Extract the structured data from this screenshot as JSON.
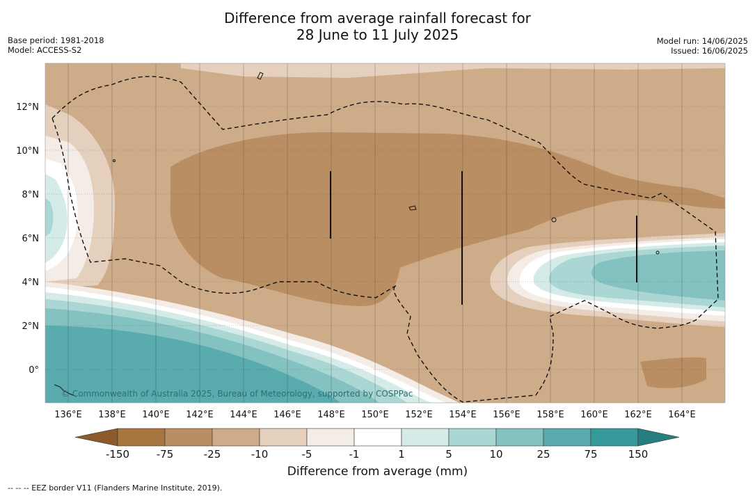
{
  "header": {
    "title_line1": "Difference from average rainfall forecast for",
    "title_line2": "28 June to 11 July 2025",
    "base_period": "Base period: 1981-2018",
    "model": "Model: ACCESS-S2",
    "model_run": "Model run: 14/06/2025",
    "issued": "Issued: 16/06/2025"
  },
  "map": {
    "lon_ticks": [
      "136°E",
      "138°E",
      "140°E",
      "142°E",
      "144°E",
      "146°E",
      "148°E",
      "150°E",
      "152°E",
      "154°E",
      "156°E",
      "158°E",
      "160°E",
      "162°E",
      "164°E"
    ],
    "lat_ticks": [
      "12°N",
      "10°N",
      "8°N",
      "6°N",
      "4°N",
      "2°N",
      "0°"
    ],
    "copyright": "© Commonwealth of Australia 2025, Bureau of Meteorology, supported by COSPPac"
  },
  "legend": {
    "title": "Difference from average (mm)",
    "tick_labels": [
      "-150",
      "-75",
      "-25",
      "-10",
      "-5",
      "-1",
      "1",
      "5",
      "10",
      "25",
      "75",
      "150"
    ],
    "colors": [
      "#a87541",
      "#b98e63",
      "#cfac89",
      "#e4d0bd",
      "#f4ece6",
      "#ffffff",
      "#d4ebe8",
      "#aad6d4",
      "#84c2c1",
      "#5aabad",
      "#359a99"
    ],
    "low_extend_color": "#8c5a2c",
    "high_extend_color": "#267f7e"
  },
  "footnote": "--  --  -- EEZ border V11 (Flanders Marine Institute, 2019)."
}
